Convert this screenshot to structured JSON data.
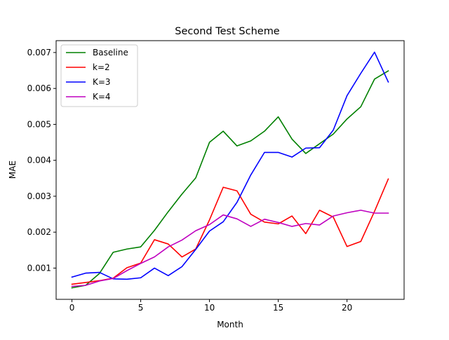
{
  "chart_data": {
    "type": "line",
    "title": "Second Test Scheme",
    "xlabel": "Month",
    "ylabel": "MAE",
    "xlim": [
      -1.15,
      24.15
    ],
    "ylim": [
      0.00013,
      0.00733
    ],
    "xticks": [
      0,
      5,
      10,
      15,
      20
    ],
    "xtick_labels": [
      "0",
      "5",
      "10",
      "15",
      "20"
    ],
    "yticks": [
      0.001,
      0.002,
      0.003,
      0.004,
      0.005,
      0.006,
      0.007
    ],
    "ytick_labels": [
      "0.001",
      "0.002",
      "0.003",
      "0.004",
      "0.005",
      "0.006",
      "0.007"
    ],
    "grid": false,
    "legend_position": "top-left",
    "x": [
      0,
      1,
      2,
      3,
      4,
      5,
      6,
      7,
      8,
      9,
      10,
      11,
      12,
      13,
      14,
      15,
      16,
      17,
      18,
      19,
      20,
      21,
      22,
      23
    ],
    "series": [
      {
        "name": "Baseline",
        "color": "#008000",
        "values": [
          0.00045,
          0.00052,
          0.00085,
          0.00144,
          0.00153,
          0.00159,
          0.00205,
          0.00257,
          0.00306,
          0.00351,
          0.0045,
          0.00481,
          0.0044,
          0.00454,
          0.00481,
          0.00521,
          0.00459,
          0.00419,
          0.00446,
          0.00473,
          0.00515,
          0.00549,
          0.00626,
          0.00649
        ]
      },
      {
        "name": "k=2",
        "color": "#ff0000",
        "values": [
          0.00055,
          0.0006,
          0.00065,
          0.00072,
          0.00101,
          0.00114,
          0.00179,
          0.00167,
          0.00131,
          0.00153,
          0.00234,
          0.00325,
          0.00315,
          0.0025,
          0.00228,
          0.00223,
          0.00245,
          0.00196,
          0.00261,
          0.00242,
          0.0016,
          0.00174,
          0.00258,
          0.00348
        ]
      },
      {
        "name": "K=3",
        "color": "#0000ff",
        "values": [
          0.00075,
          0.00086,
          0.00088,
          0.0007,
          0.00069,
          0.00073,
          0.001,
          0.00079,
          0.00104,
          0.00152,
          0.00203,
          0.00229,
          0.00283,
          0.00359,
          0.00422,
          0.00422,
          0.00409,
          0.00434,
          0.00435,
          0.00484,
          0.0058,
          0.00642,
          0.00701,
          0.00618
        ]
      },
      {
        "name": "K=4",
        "color": "#bf00bf",
        "values": [
          0.00049,
          0.00052,
          0.00064,
          0.00071,
          0.00093,
          0.00113,
          0.00131,
          0.00159,
          0.00178,
          0.00204,
          0.00221,
          0.00248,
          0.00237,
          0.00216,
          0.00236,
          0.00227,
          0.00216,
          0.00224,
          0.0022,
          0.00245,
          0.00254,
          0.00261,
          0.00253,
          0.00253
        ]
      }
    ]
  }
}
